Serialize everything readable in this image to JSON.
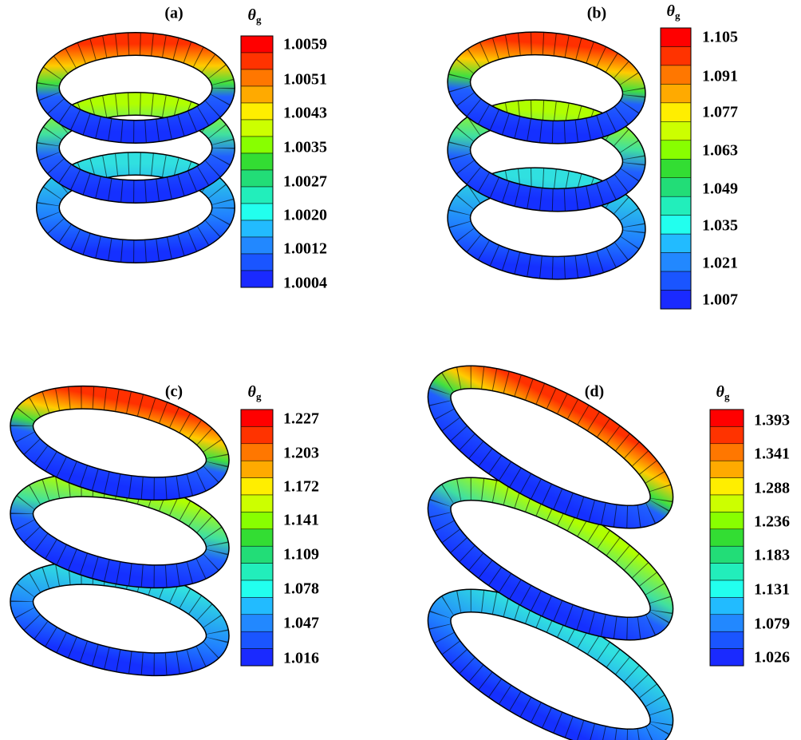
{
  "panels": [
    {
      "label": "(a)",
      "symbol": "θ",
      "subscript": "g",
      "colorbar_labels": [
        "1.0059",
        "1.0051",
        "1.0043",
        "1.0035",
        "1.0027",
        "1.0020",
        "1.0012",
        "1.0004"
      ]
    },
    {
      "label": "(b)",
      "symbol": "θ",
      "subscript": "g",
      "colorbar_labels": [
        "1.105",
        "1.091",
        "1.077",
        "1.063",
        "1.049",
        "1.035",
        "1.021",
        "1.007"
      ]
    },
    {
      "label": "(c)",
      "symbol": "θ",
      "subscript": "g",
      "colorbar_labels": [
        "1.227",
        "1.203",
        "1.172",
        "1.141",
        "1.109",
        "1.078",
        "1.047",
        "1.016"
      ]
    },
    {
      "label": "(d)",
      "symbol": "θ",
      "subscript": "g",
      "colorbar_labels": [
        "1.393",
        "1.341",
        "1.288",
        "1.236",
        "1.183",
        "1.131",
        "1.079",
        "1.026"
      ]
    }
  ]
}
